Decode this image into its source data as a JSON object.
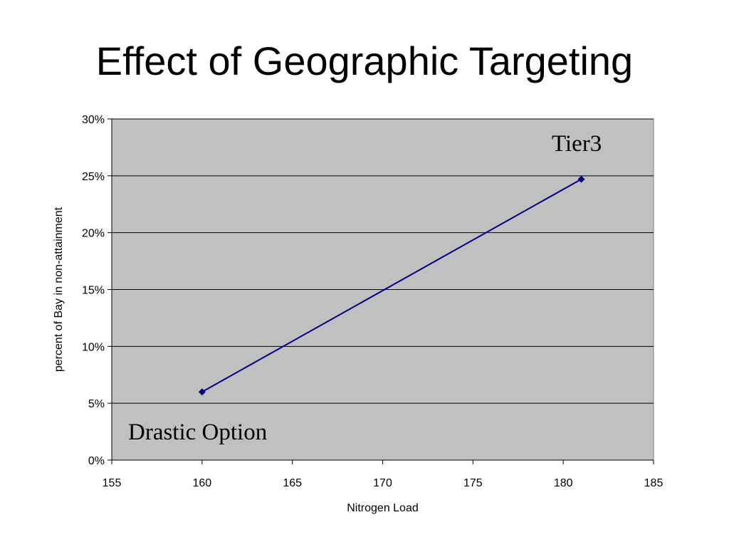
{
  "slide": {
    "title": "Effect of Geographic Targeting"
  },
  "chart_data": {
    "type": "line",
    "title": "",
    "xlabel": "Nitrogen Load",
    "ylabel": "percent of Bay in non-attainment",
    "xlim": [
      155,
      185
    ],
    "ylim": [
      0,
      30
    ],
    "x_ticks": [
      155,
      160,
      165,
      170,
      175,
      180,
      185
    ],
    "y_ticks": [
      0,
      5,
      10,
      15,
      20,
      25,
      30
    ],
    "y_tick_suffix": "%",
    "grid": "horizontal",
    "legend": "none",
    "plot_background": "#c0c0c0",
    "series": [
      {
        "color": "#000080",
        "marker": "diamond",
        "x": [
          160,
          181
        ],
        "y": [
          6,
          24.7
        ]
      }
    ],
    "annotations": [
      {
        "text": "Tier3"
      },
      {
        "text": "Drastic Option"
      }
    ]
  }
}
